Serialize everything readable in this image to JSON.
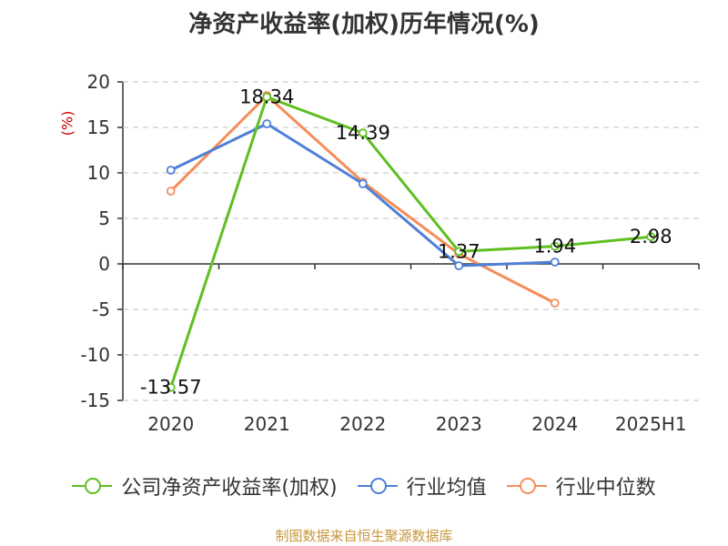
{
  "chart_data": {
    "type": "line",
    "title": "净资产收益率(加权)历年情况(%)",
    "ylabel": "(%)",
    "categories": [
      "2020",
      "2021",
      "2022",
      "2023",
      "2024",
      "2025H1"
    ],
    "ylim": [
      -15,
      20
    ],
    "yticks": [
      20,
      15,
      10,
      5,
      0,
      -5,
      -10,
      -15
    ],
    "grid": true,
    "legend_position": "bottom",
    "series": [
      {
        "name": "公司净资产收益率(加权)",
        "color": "#5fbf21",
        "values": [
          -13.57,
          18.34,
          14.39,
          1.37,
          1.94,
          2.98
        ],
        "labels": [
          "-13.57",
          "18.34",
          "14.39",
          "1.37",
          "1.94",
          "2.98"
        ]
      },
      {
        "name": "行业均值",
        "color": "#4f7fd6",
        "values": [
          10.3,
          15.4,
          8.8,
          -0.2,
          0.2,
          null
        ]
      },
      {
        "name": "行业中位数",
        "color": "#f58d5a",
        "values": [
          8.0,
          18.5,
          9.0,
          1.1,
          -4.3,
          null
        ]
      }
    ]
  },
  "footer": {
    "source": "制图数据来自恒生聚源数据库"
  }
}
